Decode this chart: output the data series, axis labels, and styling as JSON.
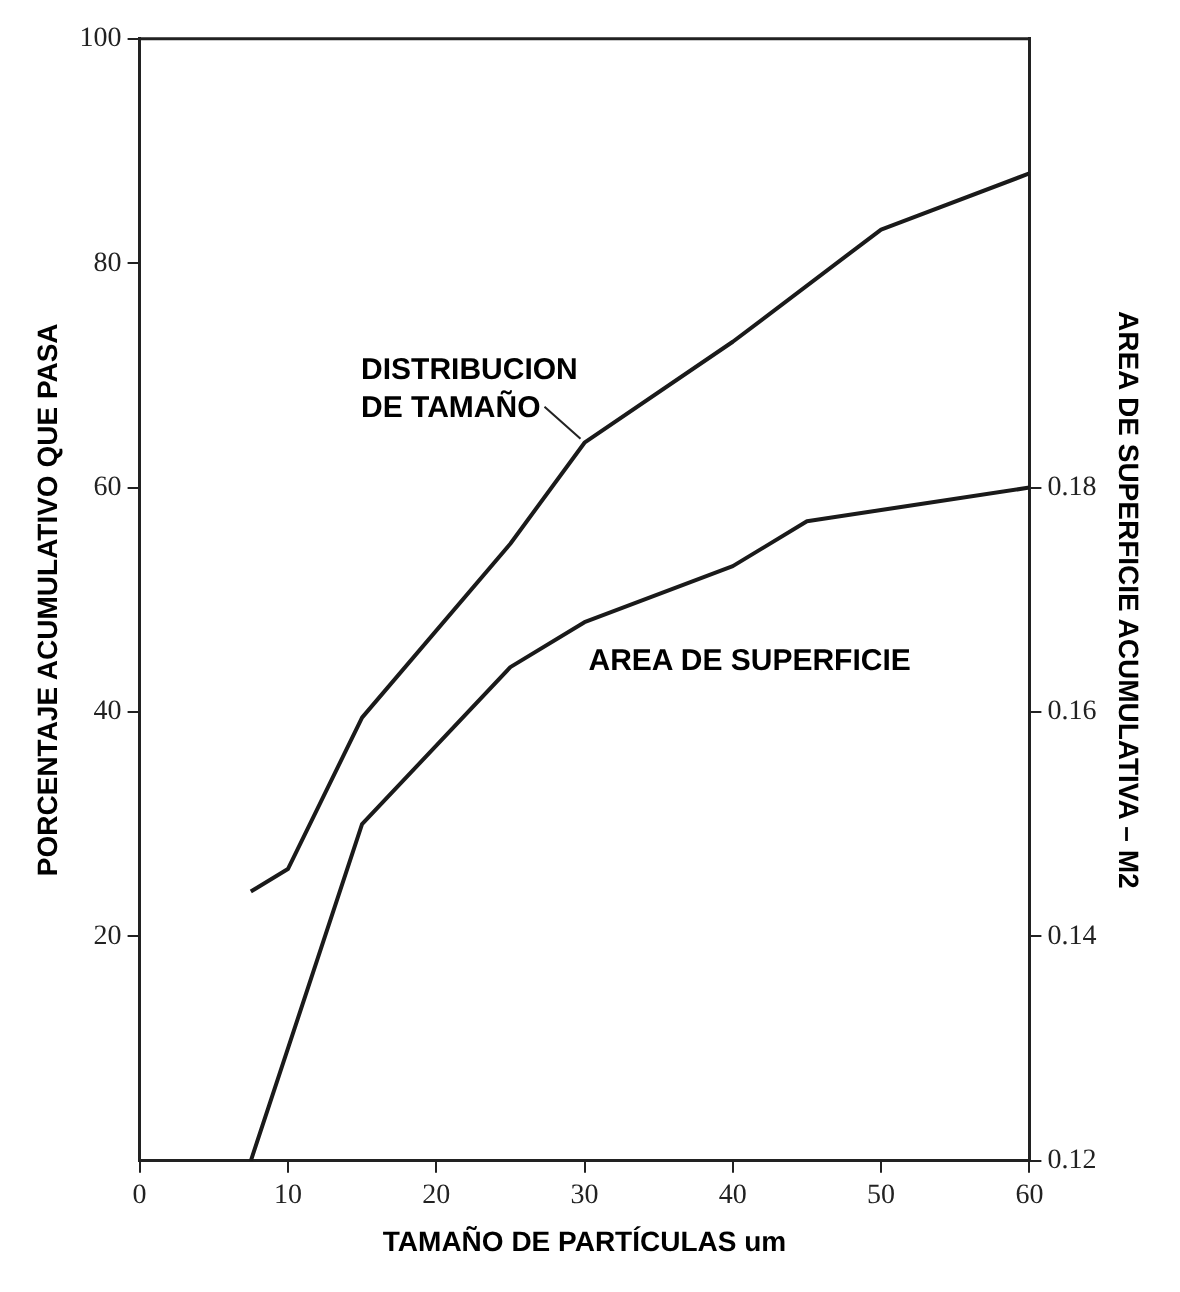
{
  "chart_data": {
    "type": "line",
    "xlabel": "TAMAÑO DE PARTÍCULAS um",
    "ylabel": "PORCENTAJE ACUMULATIVO QUE PASA",
    "y2label": "AREA DE SUPERFICIE ACUMULATIVA – M2",
    "xlim": [
      0,
      60
    ],
    "xticks": [
      0,
      10,
      20,
      30,
      40,
      50,
      60
    ],
    "ylim": [
      0,
      100
    ],
    "yticks": [
      20,
      40,
      60,
      80,
      100
    ],
    "y2lim": [
      0.12,
      0.22
    ],
    "y2ticks": [
      0.12,
      0.14,
      0.16,
      0.18
    ],
    "grid": false,
    "legend": false,
    "marker": "none",
    "line_style": "solid",
    "series": [
      {
        "name": "DISTRIBUCION DE TAMAÑO",
        "color": "#1a1a1a",
        "x": [
          7.5,
          10,
          15,
          25,
          30,
          40,
          50,
          60
        ],
        "values": [
          24,
          26,
          39.5,
          55,
          64,
          73,
          83,
          88
        ]
      },
      {
        "name": "AREA DE SUPERFICIE",
        "color": "#1a1a1a",
        "axis": "y2",
        "x": [
          7.5,
          15,
          25,
          30,
          40,
          45,
          50,
          60
        ],
        "values": [
          0.12,
          0.15,
          0.164,
          0.168,
          0.173,
          0.177,
          0.178,
          0.18
        ]
      }
    ]
  }
}
